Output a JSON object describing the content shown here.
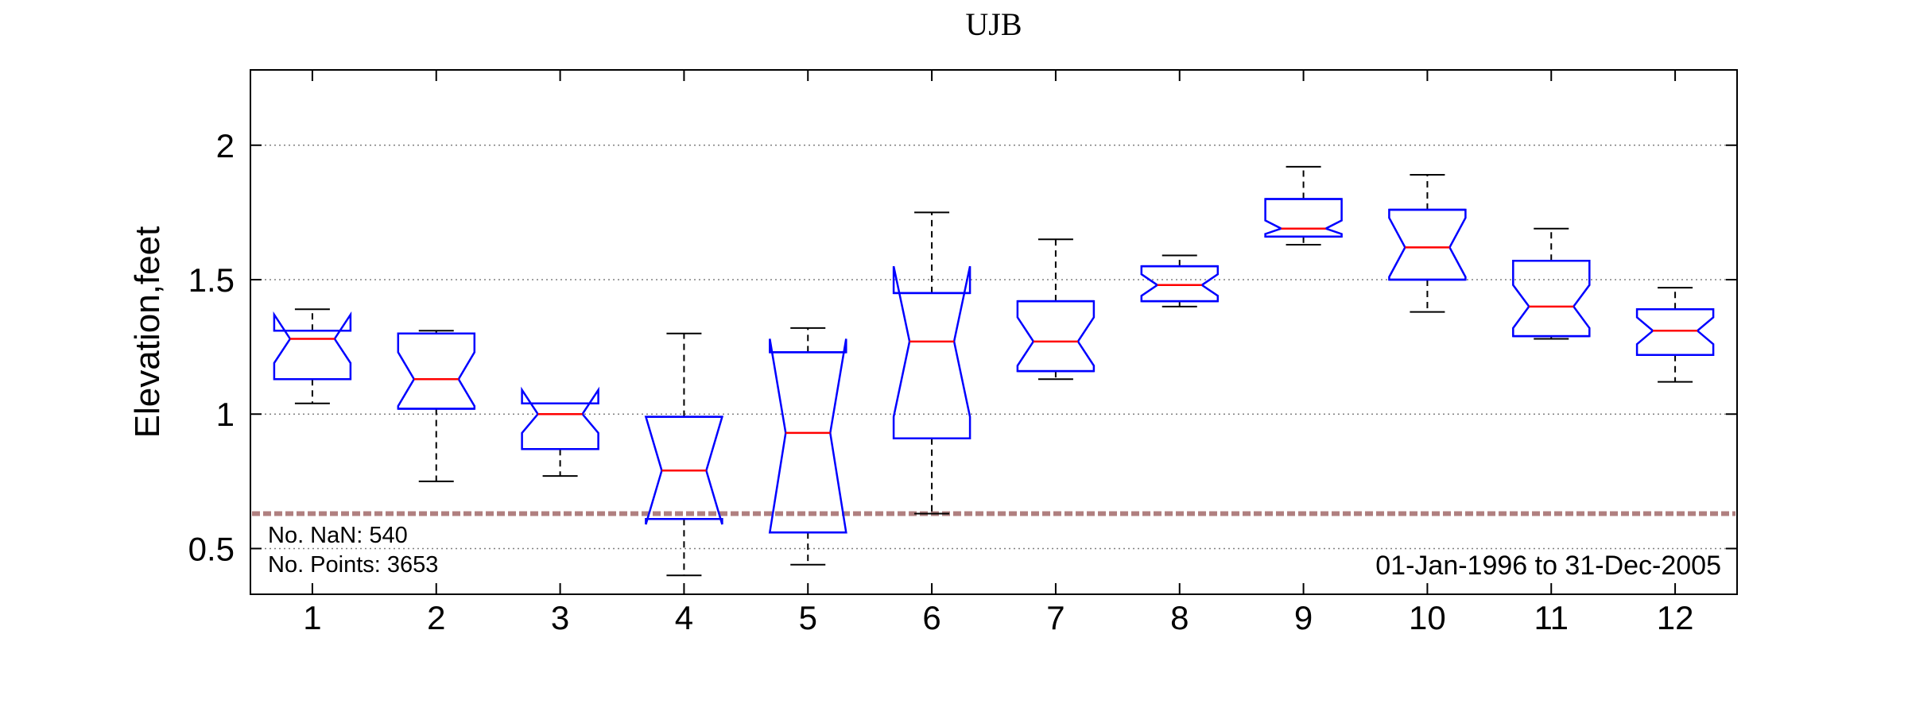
{
  "chart_data": {
    "type": "boxplot",
    "title": "UJB",
    "xlabel": "",
    "ylabel": "Elevation,feet",
    "categories": [
      "1",
      "2",
      "3",
      "4",
      "5",
      "6",
      "7",
      "8",
      "9",
      "10",
      "11",
      "12"
    ],
    "yticks": [
      "0.5",
      "1",
      "1.5",
      "2"
    ],
    "ytick_values": [
      0.5,
      1,
      1.5,
      2
    ],
    "ylim": [
      0.33,
      2.28
    ],
    "grid": "horizontal dotted",
    "notched": true,
    "boxes": [
      {
        "month": "1",
        "whisker_low": 1.04,
        "q1": 1.13,
        "median": 1.28,
        "q3": 1.31,
        "whisker_high": 1.39,
        "notch_low": 1.19,
        "notch_high": 1.37
      },
      {
        "month": "2",
        "whisker_low": 0.75,
        "q1": 1.02,
        "median": 1.13,
        "q3": 1.3,
        "whisker_high": 1.31,
        "notch_low": 1.03,
        "notch_high": 1.23
      },
      {
        "month": "3",
        "whisker_low": 0.77,
        "q1": 0.87,
        "median": 1.0,
        "q3": 1.04,
        "whisker_high": 1.04,
        "notch_low": 0.93,
        "notch_high": 1.09
      },
      {
        "month": "4",
        "whisker_low": 0.4,
        "q1": 0.61,
        "median": 0.79,
        "q3": 0.99,
        "whisker_high": 1.3,
        "notch_low": 0.59,
        "notch_high": 0.99
      },
      {
        "month": "5",
        "whisker_low": 0.44,
        "q1": 0.56,
        "median": 0.93,
        "q3": 1.23,
        "whisker_high": 1.32,
        "notch_low": 0.56,
        "notch_high": 1.28
      },
      {
        "month": "6",
        "whisker_low": 0.63,
        "q1": 0.91,
        "median": 1.27,
        "q3": 1.45,
        "whisker_high": 1.75,
        "notch_low": 0.99,
        "notch_high": 1.55
      },
      {
        "month": "7",
        "whisker_low": 1.13,
        "q1": 1.16,
        "median": 1.27,
        "q3": 1.42,
        "whisker_high": 1.65,
        "notch_low": 1.18,
        "notch_high": 1.36
      },
      {
        "month": "8",
        "whisker_low": 1.4,
        "q1": 1.42,
        "median": 1.48,
        "q3": 1.55,
        "whisker_high": 1.59,
        "notch_low": 1.44,
        "notch_high": 1.52
      },
      {
        "month": "9",
        "whisker_low": 1.63,
        "q1": 1.66,
        "median": 1.69,
        "q3": 1.8,
        "whisker_high": 1.92,
        "notch_low": 1.67,
        "notch_high": 1.72
      },
      {
        "month": "10",
        "whisker_low": 1.38,
        "q1": 1.5,
        "median": 1.62,
        "q3": 1.76,
        "whisker_high": 1.89,
        "notch_low": 1.51,
        "notch_high": 1.73
      },
      {
        "month": "11",
        "whisker_low": 1.28,
        "q1": 1.29,
        "median": 1.4,
        "q3": 1.57,
        "whisker_high": 1.69,
        "notch_low": 1.32,
        "notch_high": 1.48
      },
      {
        "month": "12",
        "whisker_low": 1.12,
        "q1": 1.22,
        "median": 1.31,
        "q3": 1.39,
        "whisker_high": 1.47,
        "notch_low": 1.26,
        "notch_high": 1.36
      }
    ],
    "reference_line": {
      "value": 0.63,
      "color": "#b08080",
      "style": "dashed"
    },
    "annotations": {
      "nan_count": "No. NaN: 540",
      "points_count": "No. Points: 3653",
      "date_range": "01-Jan-1996 to 31-Dec-2005"
    },
    "colors": {
      "box": "#0000ff",
      "median": "#ff0000",
      "whisker": "#000000",
      "grid": "#808080"
    }
  }
}
